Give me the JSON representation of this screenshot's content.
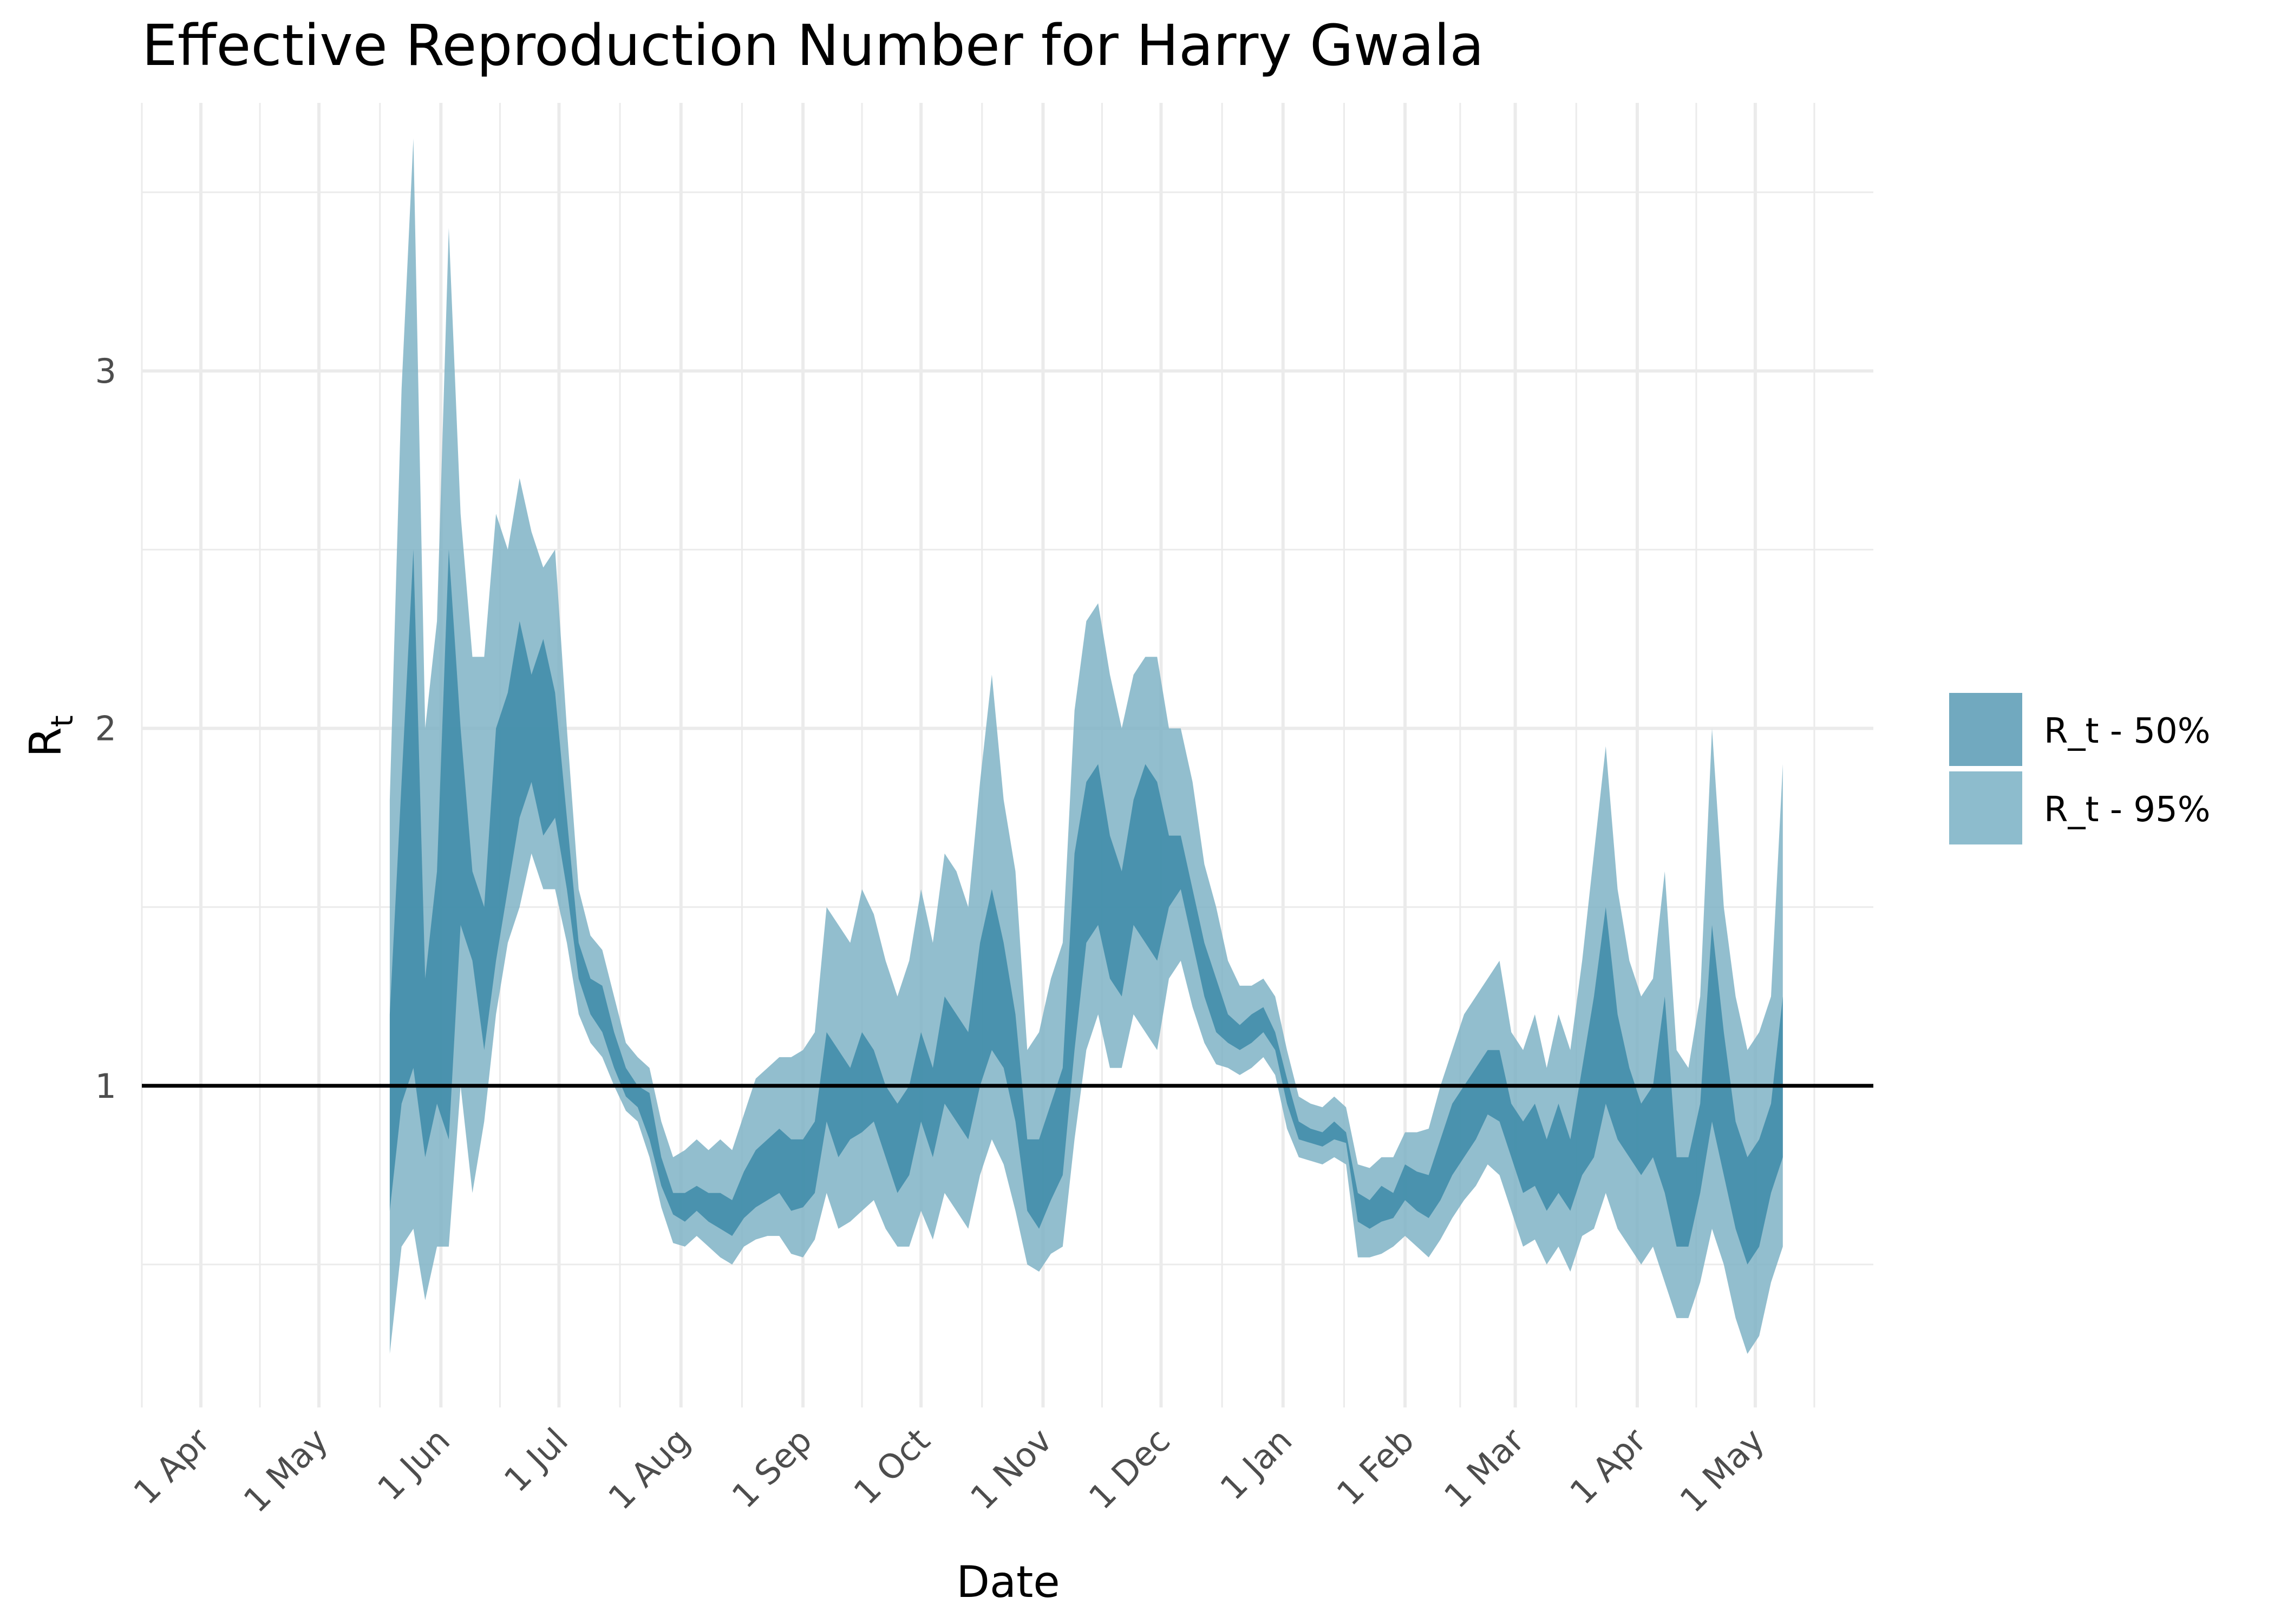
{
  "chart_data": {
    "type": "area",
    "title": "Effective Reproduction Number for Harry Gwala",
    "xlabel": "Date",
    "ylabel": "R",
    "ylabel_subscript": "t",
    "x_ticks": [
      "1 Apr",
      "1 May",
      "1 Jun",
      "1 Jul",
      "1 Aug",
      "1 Sep",
      "1 Oct",
      "1 Nov",
      "1 Dec",
      "1 Jan",
      "1 Feb",
      "1 Mar",
      "1 Apr",
      "1 May"
    ],
    "x_tick_dates": [
      "2020-04-01",
      "2020-05-01",
      "2020-06-01",
      "2020-07-01",
      "2020-08-01",
      "2020-09-01",
      "2020-10-01",
      "2020-11-01",
      "2020-12-01",
      "2021-01-01",
      "2021-02-01",
      "2021-03-01",
      "2021-04-01",
      "2021-05-01"
    ],
    "xlim": [
      "2020-03-17",
      "2021-05-31"
    ],
    "y_ticks": [
      "1",
      "2",
      "3"
    ],
    "y_tick_values": [
      1,
      2,
      3
    ],
    "ylim": [
      0.1,
      3.75
    ],
    "grid": true,
    "legend_position": "right",
    "reference_line": 1,
    "colors": {
      "band_50": "#3d8ba8",
      "band_95": "#7fb3c6",
      "legend_50": "#71a9bf",
      "legend_95": "#8dbccd",
      "reference": "#000000"
    },
    "series": [
      {
        "name": "R_t - 50%",
        "x": [
          "2020-05-19",
          "2020-05-22",
          "2020-05-25",
          "2020-05-28",
          "2020-05-31",
          "2020-06-03",
          "2020-06-06",
          "2020-06-09",
          "2020-06-12",
          "2020-06-15",
          "2020-06-18",
          "2020-06-21",
          "2020-06-24",
          "2020-06-27",
          "2020-06-30",
          "2020-07-03",
          "2020-07-06",
          "2020-07-09",
          "2020-07-12",
          "2020-07-15",
          "2020-07-18",
          "2020-07-21",
          "2020-07-24",
          "2020-07-27",
          "2020-07-30",
          "2020-08-02",
          "2020-08-05",
          "2020-08-08",
          "2020-08-11",
          "2020-08-14",
          "2020-08-17",
          "2020-08-20",
          "2020-08-23",
          "2020-08-26",
          "2020-08-29",
          "2020-09-01",
          "2020-09-04",
          "2020-09-07",
          "2020-09-10",
          "2020-09-13",
          "2020-09-16",
          "2020-09-19",
          "2020-09-22",
          "2020-09-25",
          "2020-09-28",
          "2020-10-01",
          "2020-10-04",
          "2020-10-07",
          "2020-10-10",
          "2020-10-13",
          "2020-10-16",
          "2020-10-19",
          "2020-10-22",
          "2020-10-25",
          "2020-10-28",
          "2020-10-31",
          "2020-11-03",
          "2020-11-06",
          "2020-11-09",
          "2020-11-12",
          "2020-11-15",
          "2020-11-18",
          "2020-11-21",
          "2020-11-24",
          "2020-11-27",
          "2020-11-30",
          "2020-12-03",
          "2020-12-06",
          "2020-12-09",
          "2020-12-12",
          "2020-12-15",
          "2020-12-18",
          "2020-12-21",
          "2020-12-24",
          "2020-12-27",
          "2020-12-30",
          "2021-01-02",
          "2021-01-05",
          "2021-01-08",
          "2021-01-11",
          "2021-01-14",
          "2021-01-17",
          "2021-01-20",
          "2021-01-23",
          "2021-01-26",
          "2021-01-29",
          "2021-02-01",
          "2021-02-04",
          "2021-02-07",
          "2021-02-10",
          "2021-02-13",
          "2021-02-16",
          "2021-02-19",
          "2021-02-22",
          "2021-02-25",
          "2021-02-28",
          "2021-03-03",
          "2021-03-06",
          "2021-03-09",
          "2021-03-12",
          "2021-03-15",
          "2021-03-18",
          "2021-03-21",
          "2021-03-24",
          "2021-03-27",
          "2021-03-30",
          "2021-04-02",
          "2021-04-05",
          "2021-04-08",
          "2021-04-11",
          "2021-04-14",
          "2021-04-17",
          "2021-04-20",
          "2021-04-23",
          "2021-04-26",
          "2021-04-29",
          "2021-05-02",
          "2021-05-05",
          "2021-05-08"
        ],
        "lower": [
          0.65,
          0.95,
          1.05,
          0.8,
          0.95,
          0.85,
          1.45,
          1.35,
          1.1,
          1.35,
          1.55,
          1.75,
          1.85,
          1.7,
          1.75,
          1.55,
          1.3,
          1.2,
          1.15,
          1.05,
          0.97,
          0.94,
          0.85,
          0.72,
          0.64,
          0.62,
          0.65,
          0.62,
          0.6,
          0.58,
          0.63,
          0.66,
          0.68,
          0.7,
          0.65,
          0.66,
          0.7,
          0.9,
          0.8,
          0.85,
          0.87,
          0.9,
          0.8,
          0.7,
          0.75,
          0.9,
          0.8,
          0.95,
          0.9,
          0.85,
          1.0,
          1.1,
          1.05,
          0.9,
          0.65,
          0.6,
          0.68,
          0.75,
          1.1,
          1.4,
          1.45,
          1.3,
          1.25,
          1.45,
          1.4,
          1.35,
          1.5,
          1.55,
          1.4,
          1.25,
          1.15,
          1.12,
          1.1,
          1.12,
          1.15,
          1.1,
          0.95,
          0.85,
          0.84,
          0.83,
          0.85,
          0.84,
          0.62,
          0.6,
          0.62,
          0.63,
          0.68,
          0.65,
          0.63,
          0.68,
          0.75,
          0.8,
          0.85,
          0.92,
          0.9,
          0.8,
          0.7,
          0.72,
          0.65,
          0.7,
          0.65,
          0.75,
          0.8,
          0.95,
          0.85,
          0.8,
          0.75,
          0.8,
          0.7,
          0.55,
          0.55,
          0.7,
          0.9,
          0.75,
          0.6,
          0.5,
          0.55,
          0.7,
          0.8
        ],
        "upper": [
          1.2,
          1.85,
          2.5,
          1.3,
          1.6,
          2.5,
          2.0,
          1.6,
          1.5,
          2.0,
          2.1,
          2.3,
          2.15,
          2.25,
          2.1,
          1.75,
          1.4,
          1.3,
          1.28,
          1.15,
          1.05,
          1.0,
          0.98,
          0.8,
          0.7,
          0.7,
          0.72,
          0.7,
          0.7,
          0.68,
          0.76,
          0.82,
          0.85,
          0.88,
          0.85,
          0.85,
          0.9,
          1.15,
          1.1,
          1.05,
          1.15,
          1.1,
          1.0,
          0.95,
          1.0,
          1.15,
          1.05,
          1.25,
          1.2,
          1.15,
          1.4,
          1.55,
          1.4,
          1.2,
          0.85,
          0.85,
          0.95,
          1.05,
          1.65,
          1.85,
          1.9,
          1.7,
          1.6,
          1.8,
          1.9,
          1.85,
          1.7,
          1.7,
          1.55,
          1.4,
          1.3,
          1.2,
          1.17,
          1.2,
          1.22,
          1.15,
          1.02,
          0.9,
          0.88,
          0.87,
          0.9,
          0.87,
          0.7,
          0.68,
          0.72,
          0.7,
          0.78,
          0.76,
          0.75,
          0.85,
          0.95,
          1.0,
          1.05,
          1.1,
          1.1,
          0.95,
          0.9,
          0.95,
          0.85,
          0.95,
          0.85,
          1.05,
          1.25,
          1.5,
          1.2,
          1.05,
          0.95,
          1.0,
          1.25,
          0.8,
          0.8,
          0.95,
          1.45,
          1.15,
          0.9,
          0.8,
          0.85,
          0.95,
          1.25
        ]
      },
      {
        "name": "R_t - 95%",
        "x": [
          "2020-05-19",
          "2020-05-22",
          "2020-05-25",
          "2020-05-28",
          "2020-05-31",
          "2020-06-03",
          "2020-06-06",
          "2020-06-09",
          "2020-06-12",
          "2020-06-15",
          "2020-06-18",
          "2020-06-21",
          "2020-06-24",
          "2020-06-27",
          "2020-06-30",
          "2020-07-03",
          "2020-07-06",
          "2020-07-09",
          "2020-07-12",
          "2020-07-15",
          "2020-07-18",
          "2020-07-21",
          "2020-07-24",
          "2020-07-27",
          "2020-07-30",
          "2020-08-02",
          "2020-08-05",
          "2020-08-08",
          "2020-08-11",
          "2020-08-14",
          "2020-08-17",
          "2020-08-20",
          "2020-08-23",
          "2020-08-26",
          "2020-08-29",
          "2020-09-01",
          "2020-09-04",
          "2020-09-07",
          "2020-09-10",
          "2020-09-13",
          "2020-09-16",
          "2020-09-19",
          "2020-09-22",
          "2020-09-25",
          "2020-09-28",
          "2020-10-01",
          "2020-10-04",
          "2020-10-07",
          "2020-10-10",
          "2020-10-13",
          "2020-10-16",
          "2020-10-19",
          "2020-10-22",
          "2020-10-25",
          "2020-10-28",
          "2020-10-31",
          "2020-11-03",
          "2020-11-06",
          "2020-11-09",
          "2020-11-12",
          "2020-11-15",
          "2020-11-18",
          "2020-11-21",
          "2020-11-24",
          "2020-11-27",
          "2020-11-30",
          "2020-12-03",
          "2020-12-06",
          "2020-12-09",
          "2020-12-12",
          "2020-12-15",
          "2020-12-18",
          "2020-12-21",
          "2020-12-24",
          "2020-12-27",
          "2020-12-30",
          "2021-01-02",
          "2021-01-05",
          "2021-01-08",
          "2021-01-11",
          "2021-01-14",
          "2021-01-17",
          "2021-01-20",
          "2021-01-23",
          "2021-01-26",
          "2021-01-29",
          "2021-02-01",
          "2021-02-04",
          "2021-02-07",
          "2021-02-10",
          "2021-02-13",
          "2021-02-16",
          "2021-02-19",
          "2021-02-22",
          "2021-02-25",
          "2021-02-28",
          "2021-03-03",
          "2021-03-06",
          "2021-03-09",
          "2021-03-12",
          "2021-03-15",
          "2021-03-18",
          "2021-03-21",
          "2021-03-24",
          "2021-03-27",
          "2021-03-30",
          "2021-04-02",
          "2021-04-05",
          "2021-04-08",
          "2021-04-11",
          "2021-04-14",
          "2021-04-17",
          "2021-04-20",
          "2021-04-23",
          "2021-04-26",
          "2021-04-29",
          "2021-05-02",
          "2021-05-05",
          "2021-05-08"
        ],
        "lower": [
          0.25,
          0.55,
          0.6,
          0.4,
          0.55,
          0.55,
          1.0,
          0.7,
          0.9,
          1.2,
          1.4,
          1.5,
          1.65,
          1.55,
          1.55,
          1.4,
          1.2,
          1.12,
          1.08,
          1.0,
          0.93,
          0.9,
          0.8,
          0.66,
          0.56,
          0.55,
          0.58,
          0.55,
          0.52,
          0.5,
          0.55,
          0.57,
          0.58,
          0.58,
          0.53,
          0.52,
          0.57,
          0.7,
          0.6,
          0.62,
          0.65,
          0.68,
          0.6,
          0.55,
          0.55,
          0.65,
          0.57,
          0.7,
          0.65,
          0.6,
          0.75,
          0.85,
          0.78,
          0.65,
          0.5,
          0.48,
          0.53,
          0.55,
          0.85,
          1.1,
          1.2,
          1.05,
          1.05,
          1.2,
          1.15,
          1.1,
          1.3,
          1.35,
          1.22,
          1.12,
          1.06,
          1.05,
          1.03,
          1.05,
          1.08,
          1.03,
          0.88,
          0.8,
          0.79,
          0.78,
          0.8,
          0.78,
          0.52,
          0.52,
          0.53,
          0.55,
          0.58,
          0.55,
          0.52,
          0.57,
          0.63,
          0.68,
          0.72,
          0.78,
          0.75,
          0.65,
          0.55,
          0.57,
          0.5,
          0.55,
          0.48,
          0.58,
          0.6,
          0.7,
          0.6,
          0.55,
          0.5,
          0.55,
          0.45,
          0.35,
          0.35,
          0.45,
          0.6,
          0.5,
          0.35,
          0.25,
          0.3,
          0.45,
          0.55
        ],
        "upper": [
          1.8,
          2.95,
          3.65,
          2.0,
          2.3,
          3.4,
          2.6,
          2.2,
          2.2,
          2.6,
          2.5,
          2.7,
          2.55,
          2.45,
          2.5,
          2.0,
          1.55,
          1.42,
          1.38,
          1.25,
          1.12,
          1.08,
          1.05,
          0.9,
          0.8,
          0.82,
          0.85,
          0.82,
          0.85,
          0.82,
          0.92,
          1.02,
          1.05,
          1.08,
          1.08,
          1.1,
          1.15,
          1.5,
          1.45,
          1.4,
          1.55,
          1.48,
          1.35,
          1.25,
          1.35,
          1.55,
          1.4,
          1.65,
          1.6,
          1.5,
          1.85,
          2.15,
          1.8,
          1.6,
          1.1,
          1.15,
          1.3,
          1.4,
          2.05,
          2.3,
          2.35,
          2.15,
          2.0,
          2.15,
          2.2,
          2.2,
          2.0,
          2.0,
          1.85,
          1.62,
          1.5,
          1.35,
          1.28,
          1.28,
          1.3,
          1.25,
          1.1,
          0.97,
          0.95,
          0.94,
          0.97,
          0.94,
          0.78,
          0.77,
          0.8,
          0.8,
          0.87,
          0.87,
          0.88,
          1.0,
          1.1,
          1.2,
          1.25,
          1.3,
          1.35,
          1.15,
          1.1,
          1.2,
          1.05,
          1.2,
          1.1,
          1.35,
          1.65,
          1.95,
          1.55,
          1.35,
          1.25,
          1.3,
          1.6,
          1.1,
          1.05,
          1.25,
          2.0,
          1.5,
          1.25,
          1.1,
          1.15,
          1.25,
          1.9
        ]
      }
    ]
  }
}
